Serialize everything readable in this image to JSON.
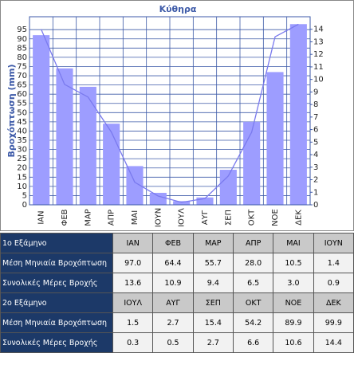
{
  "chart_data": {
    "type": "bar_line",
    "title": "Κύθηρα",
    "y_label": "Βροχόπτωση (mm)",
    "categories": [
      "ΙΑΝ",
      "ΦΕΒ",
      "ΜΑΡ",
      "ΑΠΡ",
      "ΜΑΙ",
      "ΙΟΥΝ",
      "ΙΟΥΛ",
      "ΑΥΓ",
      "ΣΕΠ",
      "ΟΚΤ",
      "ΝΟΕ",
      "ΔΕΚ"
    ],
    "series": [
      {
        "color": "#9d9dff",
        "values": [
          92,
          74,
          64,
          44,
          21,
          6.5,
          2,
          4,
          19,
          45,
          72,
          98
        ]
      },
      {
        "color": "#7a7aee",
        "axis": "y2",
        "values": [
          14,
          9.6,
          8.6,
          5.8,
          1.8,
          0.7,
          0.2,
          0.5,
          2.3,
          5.8,
          13.4,
          14.4
        ]
      }
    ],
    "ylim": [
      0,
      102
    ],
    "yticks": [
      0,
      5,
      10,
      15,
      20,
      25,
      30,
      35,
      40,
      45,
      50,
      55,
      60,
      65,
      70,
      75,
      80,
      85,
      90,
      95
    ],
    "y2lim": [
      0,
      15
    ],
    "y2ticks": [
      0,
      1,
      2,
      3,
      4,
      5,
      6,
      7,
      8,
      9,
      10,
      11,
      12,
      13,
      14
    ],
    "grid": true,
    "grid_color": "#3d5aa8"
  },
  "table": {
    "halves": [
      {
        "label": "1ο Εξάμηνο",
        "months": [
          "ΙΑΝ",
          "ΦΕΒ",
          "ΜΑΡ",
          "ΑΠΡ",
          "ΜΑΙ",
          "ΙΟΥΝ"
        ],
        "rows": [
          {
            "label": "Μέση Μηνιαία Βροχόπτωση",
            "values": [
              "97.0",
              "64.4",
              "55.7",
              "28.0",
              "10.5",
              "1.4"
            ]
          },
          {
            "label": "Συνολικές Μέρες Βροχής",
            "values": [
              "13.6",
              "10.9",
              "9.4",
              "6.5",
              "3.0",
              "0.9"
            ]
          }
        ]
      },
      {
        "label": "2ο Εξάμηνο",
        "months": [
          "ΙΟΥΛ",
          "ΑΥΓ",
          "ΣΕΠ",
          "ΟΚΤ",
          "ΝΟΕ",
          "ΔΕΚ"
        ],
        "rows": [
          {
            "label": "Μέση Μηνιαία Βροχόπτωση",
            "values": [
              "1.5",
              "2.7",
              "15.4",
              "54.2",
              "89.9",
              "99.9"
            ]
          },
          {
            "label": "Συνολικές Μέρες Βροχής",
            "values": [
              "0.3",
              "0.5",
              "2.7",
              "6.6",
              "10.6",
              "14.4"
            ]
          }
        ]
      }
    ]
  }
}
